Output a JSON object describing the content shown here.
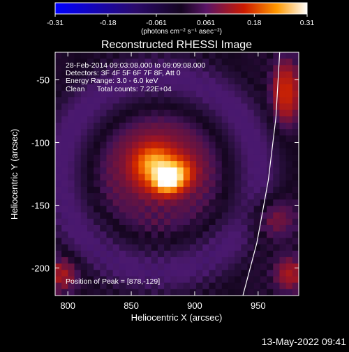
{
  "chart_data": {
    "type": "heatmap",
    "title": "Reconstructed RHESSI Image",
    "xlabel": "Heliocentric X (arcsec)",
    "ylabel": "Heliocentric Y (arcsec)",
    "xlim": [
      790,
      982
    ],
    "ylim": [
      -222,
      -28
    ],
    "x_ticks": [
      800,
      850,
      900,
      950
    ],
    "y_ticks": [
      -50,
      -100,
      -150,
      -200
    ],
    "colorbar": {
      "range": [
        -0.31,
        0.31
      ],
      "ticks": [
        "-0.31",
        "-0.18",
        "-0.061",
        "0.061",
        "0.18",
        "0.31"
      ],
      "tick_values": [
        -0.31,
        -0.18,
        -0.061,
        0.061,
        0.18,
        0.31
      ],
      "units_label": "(photons cm⁻² s⁻¹ asec⁻²)"
    },
    "annotations": [
      "28-Feb-2014 09:03:08.000 to 09:09:08.000",
      "Detectors: 3F 4F 5F 6F 7F 8F, Att 0",
      "Energy Range: 3.0 - 6.0 keV",
      "Clean      Total counts: 7.22E+04"
    ],
    "peak_label": "Position of Peak = [878,-129]",
    "peak": [
      878,
      -129
    ],
    "peak_value": 0.31,
    "limb_curve": [
      [
        967,
        -28
      ],
      [
        964,
        -80
      ],
      [
        958,
        -130
      ],
      [
        949,
        -180
      ],
      [
        938,
        -222
      ]
    ],
    "timestamp": "13-May-2022 09:41"
  },
  "colors": {
    "colormap": [
      "#0000ff",
      "#3c0060",
      "#190821",
      "#5a1e8a",
      "#cc1500",
      "#ff8800",
      "#ffe680",
      "#ffffff"
    ]
  }
}
